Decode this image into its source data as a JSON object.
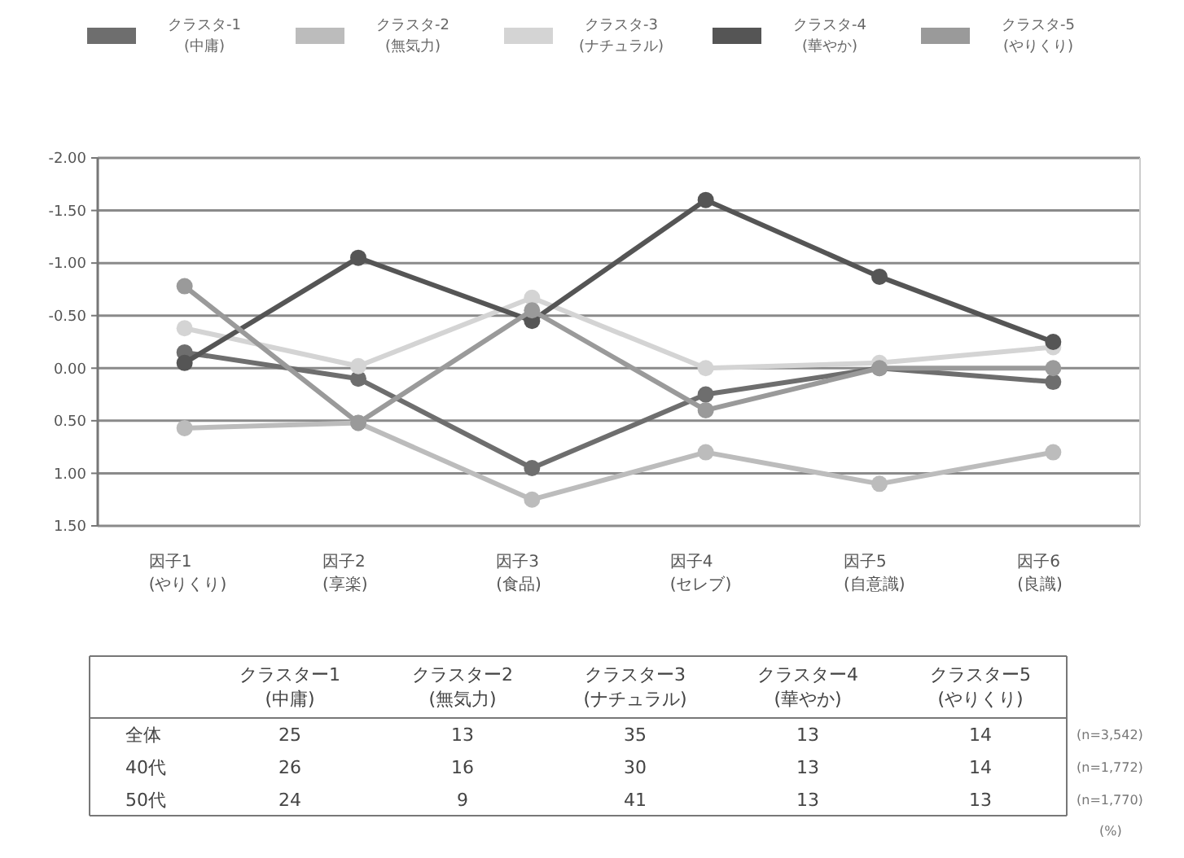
{
  "chart_data": [
    {
      "type": "line",
      "categories": [
        "因子1 (やりくり)",
        "因子2 (享楽)",
        "因子3 (食品)",
        "因子4 (セレブ)",
        "因子5 (自意識)",
        "因子6 (良識)"
      ],
      "series": [
        {
          "name": "クラスタ-1 (中庸)",
          "color": "#6e6e6e",
          "values": [
            -0.15,
            0.1,
            0.95,
            0.25,
            0.0,
            0.13
          ]
        },
        {
          "name": "クラスタ-2 (無気力)",
          "color": "#bcbcbc",
          "values": [
            0.57,
            0.52,
            1.25,
            0.8,
            1.1,
            0.8
          ]
        },
        {
          "name": "クラスタ-3 (ナチュラル)",
          "color": "#d4d4d4",
          "values": [
            -0.38,
            -0.02,
            -0.67,
            0.0,
            -0.05,
            -0.2
          ]
        },
        {
          "name": "クラスタ-4 (華やか)",
          "color": "#555555",
          "values": [
            -0.05,
            -1.05,
            -0.45,
            -1.6,
            -0.87,
            -0.25
          ]
        },
        {
          "name": "クラスタ-5 (やりくり)",
          "color": "#9a9a9a",
          "values": [
            -0.78,
            0.52,
            -0.55,
            0.4,
            0.0,
            0.0
          ]
        }
      ],
      "ylim": [
        1.5,
        -2
      ],
      "yticks": [
        {
          "value": -2,
          "label": "-2.00"
        },
        {
          "value": -1.5,
          "label": "-1.50"
        },
        {
          "value": -1,
          "label": "-1.00"
        },
        {
          "value": -0.5,
          "label": "-0.50"
        },
        {
          "value": 0,
          "label": "0.00"
        },
        {
          "value": 0.5,
          "label": "0.50"
        },
        {
          "value": 1,
          "label": "1.00"
        },
        {
          "value": 1.5,
          "label": "1.50"
        }
      ],
      "grid": "y",
      "legend": "top",
      "marker": "circle",
      "line_style": "solid"
    },
    {
      "type": "heatmap",
      "data_labels": true,
      "categories": [
        "クラスター1 (中庸)",
        "クラスター2 (無気力)",
        "クラスター3 (ナチュラル)",
        "クラスター4 (華やか)",
        "クラスター5 (やりくり)"
      ],
      "y_categories": [
        "全体",
        "40代",
        "50代"
      ],
      "y2_categories": [
        "(n=3,542)",
        "(n=1,772)",
        "(n=1,770)"
      ],
      "cells": [
        [
          25,
          13,
          35,
          13,
          14
        ],
        [
          26,
          16,
          30,
          13,
          14
        ],
        [
          24,
          9,
          41,
          13,
          13
        ]
      ],
      "annotations": [
        "(%)"
      ]
    }
  ]
}
